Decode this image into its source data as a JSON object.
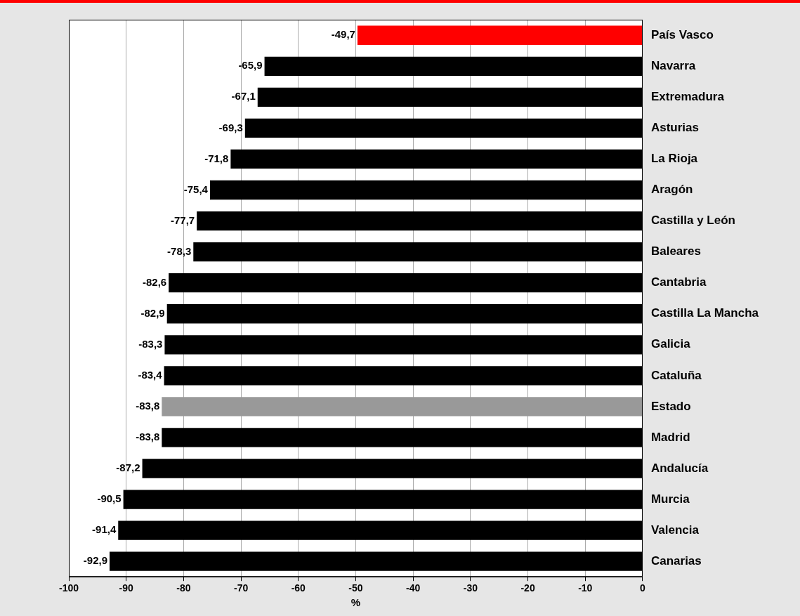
{
  "chart_data": {
    "type": "bar",
    "orientation": "horizontal",
    "xlabel": "%",
    "categories": [
      "País Vasco",
      "Navarra",
      "Extremadura",
      "Asturias",
      "La Rioja",
      "Aragón",
      "Castilla y León",
      "Baleares",
      "Cantabria",
      "Castilla La Mancha",
      "Galicia",
      "Cataluña",
      "Estado",
      "Madrid",
      "Andalucía",
      "Murcia",
      "Valencia",
      "Canarias"
    ],
    "values": [
      -49.7,
      -65.9,
      -67.1,
      -69.3,
      -71.8,
      -75.4,
      -77.7,
      -78.3,
      -82.6,
      -82.9,
      -83.3,
      -83.4,
      -83.8,
      -83.8,
      -87.2,
      -90.5,
      -91.4,
      -92.9
    ],
    "colors": [
      "#ff0000",
      "#000000",
      "#000000",
      "#000000",
      "#000000",
      "#000000",
      "#000000",
      "#000000",
      "#000000",
      "#000000",
      "#000000",
      "#000000",
      "#999999",
      "#000000",
      "#000000",
      "#000000",
      "#000000",
      "#000000"
    ],
    "value_labels": [
      "-49,7",
      "-65,9",
      "-67,1",
      "-69,3",
      "-71,8",
      "-75,4",
      "-77,7",
      "-78,3",
      "-82,6",
      "-82,9",
      "-83,3",
      "-83,4",
      "-83,8",
      "-83,8",
      "-87,2",
      "-90,5",
      "-91,4",
      "-92,9"
    ],
    "xlim": [
      -100,
      0
    ],
    "xticks": [
      -100,
      -90,
      -80,
      -70,
      -60,
      -50,
      -40,
      -30,
      -20,
      -10,
      0
    ],
    "grid": "x"
  }
}
